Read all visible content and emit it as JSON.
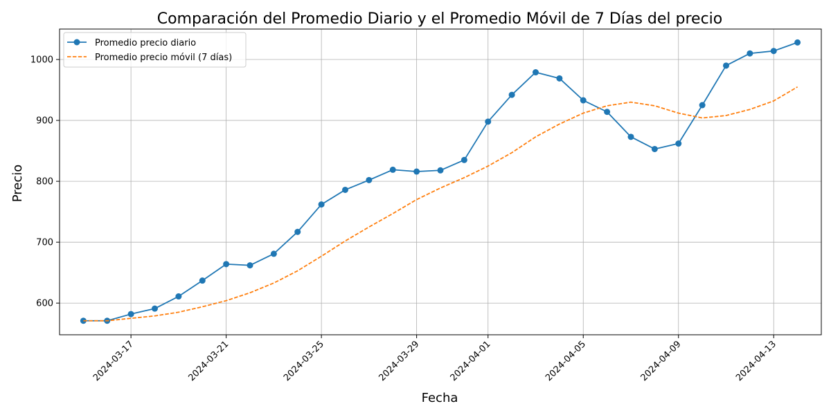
{
  "chart_data": {
    "type": "line",
    "title": "Comparación del Promedio Diario y el Promedio Móvil de 7 Días del precio",
    "xlabel": "Fecha",
    "ylabel": "Precio",
    "x": [
      "2024-03-15",
      "2024-03-16",
      "2024-03-17",
      "2024-03-18",
      "2024-03-19",
      "2024-03-20",
      "2024-03-21",
      "2024-03-22",
      "2024-03-23",
      "2024-03-24",
      "2024-03-25",
      "2024-03-26",
      "2024-03-27",
      "2024-03-28",
      "2024-03-29",
      "2024-03-30",
      "2024-03-31",
      "2024-04-01",
      "2024-04-02",
      "2024-04-03",
      "2024-04-04",
      "2024-04-05",
      "2024-04-06",
      "2024-04-07",
      "2024-04-08",
      "2024-04-09",
      "2024-04-10",
      "2024-04-11",
      "2024-04-12",
      "2024-04-13",
      "2024-04-14"
    ],
    "xticks": [
      "2024-03-17",
      "2024-03-21",
      "2024-03-25",
      "2024-03-29",
      "2024-04-01",
      "2024-04-05",
      "2024-04-09",
      "2024-04-13"
    ],
    "yticks": [
      600,
      700,
      800,
      900,
      1000
    ],
    "ylim": [
      548,
      1050
    ],
    "xlim": [
      "2024-03-14",
      "2024-04-15"
    ],
    "grid": true,
    "legend_position": "top-left",
    "series": [
      {
        "name": "Promedio precio diario",
        "color": "#1f77b4",
        "style": "solid-with-markers",
        "values": [
          571,
          571,
          582,
          591,
          611,
          637,
          664,
          662,
          681,
          717,
          762,
          786,
          802,
          819,
          816,
          818,
          835,
          898,
          942,
          979,
          969,
          933,
          914,
          873,
          853,
          862,
          925,
          990,
          1010,
          1014,
          1028
        ]
      },
      {
        "name": "Promedio precio móvil (7 días)",
        "color": "#ff7f0e",
        "style": "dashed",
        "values": [
          571,
          571,
          575,
          579,
          585,
          594,
          604,
          617,
          633,
          653,
          677,
          702,
          725,
          747,
          770,
          789,
          806,
          825,
          847,
          873,
          894,
          912,
          924,
          930,
          924,
          912,
          904,
          908,
          918,
          932,
          955
        ]
      }
    ]
  }
}
